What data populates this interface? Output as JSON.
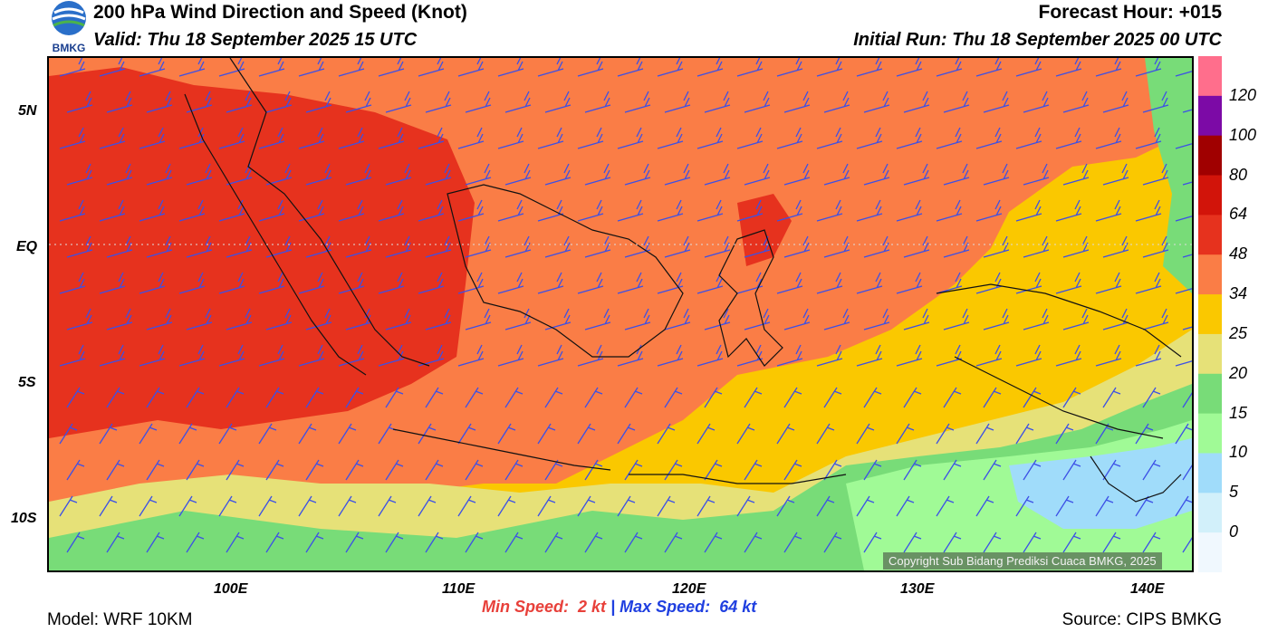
{
  "header": {
    "title": "200 hPa Wind Direction and Speed (Knot)",
    "valid": "Valid: Thu 18 September 2025 15 UTC",
    "forecast_hour": "Forecast Hour: +015",
    "initial_run": "Initial Run: Thu 18 September 2025 00 UTC"
  },
  "logo": {
    "text": "BMKG",
    "icon": "bmkg-logo-icon"
  },
  "axes": {
    "y_ticks": [
      "5N",
      "EQ",
      "5S",
      "10S"
    ],
    "x_ticks": [
      "100E",
      "110E",
      "120E",
      "130E",
      "140E"
    ]
  },
  "colorbar": {
    "labels": [
      "120",
      "100",
      "80",
      "64",
      "48",
      "34",
      "25",
      "20",
      "15",
      "10",
      "5",
      "0"
    ],
    "colors": [
      "#ff6e8c",
      "#7c0aa6",
      "#a00000",
      "#d2140a",
      "#e6321e",
      "#fa7d46",
      "#fac800",
      "#e6e178",
      "#78dc78",
      "#a0fa96",
      "#a0dcfa",
      "#d2f0fa",
      "#f0f8fe"
    ]
  },
  "speeds": {
    "min_label": "Min Speed:",
    "min_value": "2 kt",
    "separator": "|",
    "max_label": "Max Speed:",
    "max_value": "64 kt"
  },
  "footer": {
    "model": "Model: WRF 10KM",
    "source": "Source: CIPS BMKG",
    "copyright": "Copyright Sub Bidang Prediksi Cuaca BMKG, 2025"
  },
  "map_colors": {
    "band48": "#e6321e",
    "band34": "#fa7d46",
    "band25": "#fac800",
    "band20": "#e6e178",
    "band15": "#78dc78",
    "band10": "#a0fa96",
    "band5": "#a0dcfa",
    "barb": "#3c50e6",
    "coast": "#111111"
  }
}
